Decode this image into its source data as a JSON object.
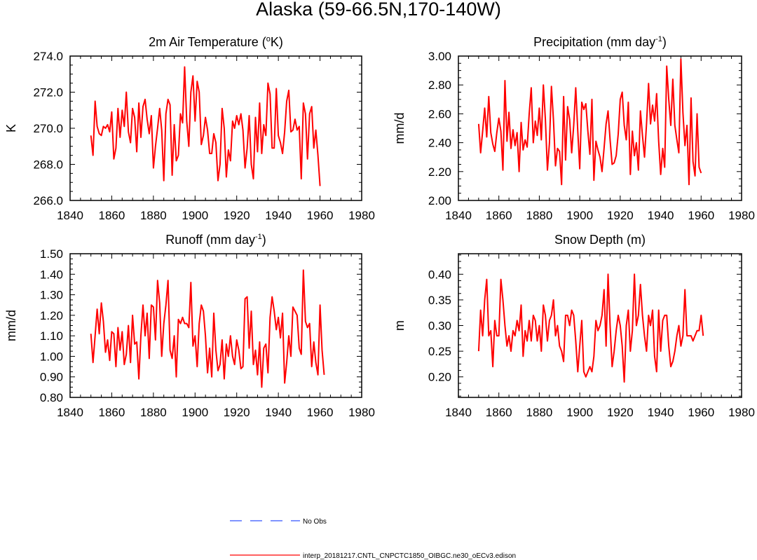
{
  "figure": {
    "title": "Alaska (59-66.5N,170-140W)"
  },
  "colors": {
    "model": "#ff0000",
    "obs": "#3355ff",
    "axis": "#000000"
  },
  "legend": {
    "obs_label": "No Obs",
    "model_label": "interp_20181217.CNTL_CNPCTC1850_OIBGC.ne30_oECv3.edison"
  },
  "chart_data": [
    {
      "id": "temp",
      "type": "line",
      "title": "2m Air Temperature (",
      "title_sup": "o",
      "title_end": "K)",
      "ylabel": "K",
      "xlim": [
        1840,
        1980
      ],
      "ylim": [
        266.0,
        274.0
      ],
      "x_ticks": [
        "1840",
        "1860",
        "1880",
        "1900",
        "1920",
        "1940",
        "1960",
        "1980"
      ],
      "y_ticks": [
        "266.0",
        "268.0",
        "270.0",
        "272.0",
        "274.0"
      ],
      "x_start": 1850,
      "values": [
        269.6,
        268.5,
        271.5,
        270.1,
        269.7,
        269.6,
        270.1,
        270.0,
        270.2,
        269.8,
        270.9,
        268.3,
        268.9,
        271.1,
        269.5,
        271.0,
        270.1,
        272.0,
        269.8,
        269.2,
        271.1,
        270.6,
        268.7,
        271.4,
        269.5,
        271.2,
        271.6,
        270.5,
        269.7,
        270.7,
        267.8,
        269.0,
        270.0,
        271.1,
        269.9,
        267.1,
        270.8,
        271.6,
        271.3,
        267.4,
        270.2,
        268.2,
        268.5,
        270.8,
        270.3,
        273.4,
        270.4,
        269.0,
        272.0,
        272.9,
        270.4,
        272.6,
        272.0,
        269.1,
        269.6,
        270.6,
        269.9,
        268.6,
        268.6,
        269.7,
        269.2,
        267.1,
        268.0,
        271.1,
        270.0,
        267.3,
        268.8,
        268.2,
        270.4,
        270.0,
        270.7,
        270.2,
        270.8,
        269.9,
        267.8,
        268.9,
        270.7,
        268.0,
        267.2,
        270.6,
        268.7,
        271.4,
        268.6,
        270.2,
        269.6,
        272.5,
        271.9,
        268.9,
        268.9,
        272.2,
        269.6,
        269.2,
        268.6,
        269.8,
        271.5,
        272.1,
        269.8,
        269.9,
        270.5,
        269.9,
        270.1,
        267.2,
        271.4,
        270.8,
        268.3,
        270.8,
        271.2,
        268.9,
        269.9,
        268.5,
        266.8
      ]
    },
    {
      "id": "precip",
      "type": "line",
      "title": "Precipitation (mm day",
      "title_sup": "-1",
      "title_end": ")",
      "ylabel": "mm/d",
      "xlim": [
        1840,
        1980
      ],
      "ylim": [
        2.0,
        3.0
      ],
      "x_ticks": [
        "1840",
        "1860",
        "1880",
        "1900",
        "1920",
        "1940",
        "1960",
        "1980"
      ],
      "y_ticks": [
        "2.00",
        "2.20",
        "2.40",
        "2.60",
        "2.80",
        "3.00"
      ],
      "x_start": 1850,
      "values": [
        2.53,
        2.33,
        2.48,
        2.64,
        2.44,
        2.72,
        2.47,
        2.39,
        2.34,
        2.47,
        2.57,
        2.48,
        2.21,
        2.83,
        2.41,
        2.61,
        2.36,
        2.49,
        2.38,
        2.47,
        2.2,
        2.54,
        2.35,
        2.42,
        2.37,
        2.6,
        2.78,
        2.4,
        2.55,
        2.45,
        2.64,
        2.42,
        2.8,
        2.56,
        2.21,
        2.4,
        2.79,
        2.56,
        2.24,
        2.36,
        2.34,
        2.11,
        2.72,
        2.28,
        2.65,
        2.56,
        2.33,
        2.52,
        2.78,
        2.48,
        2.22,
        2.68,
        2.63,
        2.67,
        2.48,
        2.32,
        2.7,
        2.14,
        2.41,
        2.35,
        2.3,
        2.2,
        2.36,
        2.53,
        2.62,
        2.42,
        2.25,
        2.26,
        2.31,
        2.46,
        2.7,
        2.75,
        2.52,
        2.42,
        2.68,
        2.18,
        2.48,
        2.31,
        2.4,
        2.21,
        2.62,
        2.45,
        2.3,
        2.53,
        2.81,
        2.53,
        2.66,
        2.55,
        2.74,
        2.41,
        2.18,
        2.36,
        2.23,
        2.93,
        2.7,
        2.52,
        2.84,
        2.52,
        2.42,
        2.33,
        2.98,
        2.61,
        2.38,
        2.52,
        2.11,
        2.71,
        2.27,
        2.17,
        2.6,
        2.23,
        2.19
      ]
    },
    {
      "id": "runoff",
      "type": "line",
      "title": "Runoff (mm day",
      "title_sup": "-1",
      "title_end": ")",
      "ylabel": "mm/d",
      "xlim": [
        1840,
        1980
      ],
      "ylim": [
        0.8,
        1.5
      ],
      "x_ticks": [
        "1840",
        "1860",
        "1880",
        "1900",
        "1920",
        "1940",
        "1960",
        "1980"
      ],
      "y_ticks": [
        "0.80",
        "0.90",
        "1.00",
        "1.10",
        "1.20",
        "1.30",
        "1.40",
        "1.50"
      ],
      "x_start": 1850,
      "values": [
        1.11,
        0.97,
        1.1,
        1.23,
        1.11,
        1.26,
        1.17,
        1.02,
        1.08,
        0.98,
        1.12,
        1.11,
        0.95,
        1.14,
        1.03,
        1.12,
        0.96,
        1.01,
        1.15,
        0.97,
        1.2,
        1.06,
        1.07,
        0.89,
        1.1,
        1.25,
        1.1,
        1.21,
        0.99,
        1.25,
        1.24,
        1.08,
        1.37,
        1.26,
        1.0,
        1.16,
        1.25,
        1.37,
        1.03,
        0.99,
        1.1,
        0.9,
        1.18,
        1.16,
        1.19,
        1.16,
        1.16,
        1.14,
        1.36,
        1.05,
        1.1,
        0.95,
        1.16,
        1.25,
        1.22,
        1.1,
        0.92,
        1.04,
        0.9,
        1.21,
        1.03,
        0.93,
        0.96,
        1.08,
        0.89,
        1.06,
        1.0,
        1.1,
        1.0,
        0.96,
        1.08,
        1.03,
        0.94,
        0.95,
        1.28,
        1.29,
        1.04,
        1.22,
        0.96,
        1.03,
        0.91,
        1.07,
        0.85,
        1.04,
        1.06,
        0.92,
        1.19,
        1.29,
        1.22,
        1.13,
        1.19,
        1.09,
        1.21,
        0.87,
        0.97,
        1.1,
        1.0,
        1.24,
        1.22,
        1.2,
        1.04,
        1.01,
        1.42,
        1.17,
        1.14,
        1.16,
        0.95,
        1.07,
        0.97,
        0.91,
        1.25,
        1.03,
        0.91
      ]
    },
    {
      "id": "snow",
      "type": "line",
      "title": "Snow Depth (m)",
      "title_sup": "",
      "title_end": "",
      "ylabel": "m",
      "xlim": [
        1840,
        1980
      ],
      "ylim": [
        0.16,
        0.44
      ],
      "x_ticks": [
        "1840",
        "1860",
        "1880",
        "1900",
        "1920",
        "1940",
        "1960",
        "1980"
      ],
      "y_ticks": [
        "0.20",
        "0.25",
        "0.30",
        "0.35",
        "0.40"
      ],
      "x_start": 1850,
      "values": [
        0.25,
        0.33,
        0.28,
        0.35,
        0.39,
        0.28,
        0.29,
        0.22,
        0.31,
        0.28,
        0.28,
        0.39,
        0.35,
        0.3,
        0.26,
        0.28,
        0.25,
        0.29,
        0.28,
        0.31,
        0.29,
        0.34,
        0.24,
        0.29,
        0.27,
        0.31,
        0.27,
        0.32,
        0.31,
        0.27,
        0.3,
        0.25,
        0.34,
        0.32,
        0.27,
        0.31,
        0.32,
        0.35,
        0.28,
        0.3,
        0.26,
        0.25,
        0.23,
        0.32,
        0.32,
        0.3,
        0.33,
        0.32,
        0.27,
        0.21,
        0.26,
        0.31,
        0.21,
        0.2,
        0.21,
        0.22,
        0.21,
        0.24,
        0.31,
        0.29,
        0.3,
        0.32,
        0.37,
        0.26,
        0.4,
        0.3,
        0.22,
        0.25,
        0.29,
        0.32,
        0.3,
        0.26,
        0.19,
        0.3,
        0.33,
        0.25,
        0.29,
        0.4,
        0.3,
        0.32,
        0.38,
        0.32,
        0.28,
        0.25,
        0.32,
        0.3,
        0.33,
        0.24,
        0.21,
        0.33,
        0.25,
        0.31,
        0.32,
        0.32,
        0.26,
        0.22,
        0.23,
        0.25,
        0.28,
        0.3,
        0.26,
        0.28,
        0.37,
        0.28,
        0.28,
        0.28,
        0.27,
        0.28,
        0.29,
        0.29,
        0.32,
        0.28
      ]
    }
  ]
}
